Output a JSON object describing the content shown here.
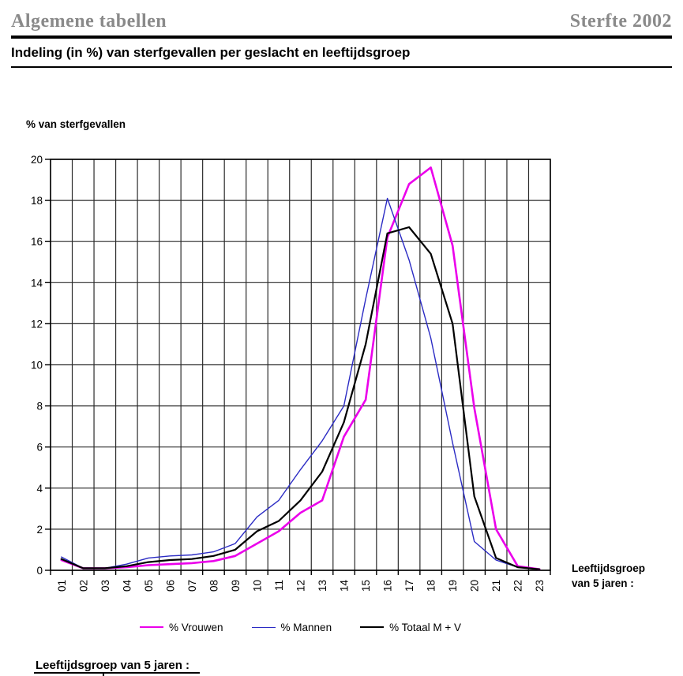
{
  "page": {
    "header_left": "Algemene tabellen",
    "header_right": "Sterfte 2002",
    "header_color": "#8a8a8a",
    "title": "Indeling (in %) van sterfgevallen per geslacht en leeftijdsgroep",
    "footer_label": "Leeftijdsgroep van 5 jaren :"
  },
  "chart_data": {
    "type": "line",
    "y_axis_title": "% van sterfgevallen",
    "x_axis_note_line1": "Leeftijdsgroep",
    "x_axis_note_line2": "van 5 jaren :",
    "categories": [
      "01",
      "02",
      "03",
      "04",
      "05",
      "06",
      "07",
      "08",
      "09",
      "10",
      "11",
      "12",
      "13",
      "14",
      "15",
      "16",
      "17",
      "18",
      "19",
      "20",
      "21",
      "22",
      "23"
    ],
    "series": [
      {
        "name": "% Vrouwen",
        "color": "#eb00eb",
        "stroke_width": 2.6,
        "values": [
          0.5,
          0.1,
          0.1,
          0.15,
          0.25,
          0.3,
          0.35,
          0.45,
          0.7,
          1.3,
          1.9,
          2.8,
          3.4,
          6.5,
          8.3,
          16.2,
          18.8,
          19.6,
          15.8,
          7.9,
          2.0,
          0.2,
          0.05
        ]
      },
      {
        "name": "% Mannen",
        "color": "#2b2bc4",
        "stroke_width": 1.4,
        "values": [
          0.65,
          0.1,
          0.1,
          0.3,
          0.6,
          0.7,
          0.75,
          0.9,
          1.3,
          2.6,
          3.4,
          4.9,
          6.3,
          8.0,
          13.2,
          18.1,
          15.1,
          11.3,
          6.2,
          1.4,
          0.5,
          0.15,
          0.05
        ]
      },
      {
        "name": "% Totaal M + V",
        "color": "#000000",
        "stroke_width": 2.2,
        "values": [
          0.55,
          0.1,
          0.1,
          0.2,
          0.4,
          0.5,
          0.55,
          0.7,
          1.0,
          1.9,
          2.4,
          3.4,
          4.8,
          7.2,
          11.0,
          16.4,
          16.7,
          15.4,
          12.0,
          3.6,
          0.6,
          0.15,
          0.05
        ]
      }
    ],
    "ylim": [
      0,
      20
    ],
    "ytick_step": 2,
    "grid": true,
    "legend_position": "bottom"
  }
}
